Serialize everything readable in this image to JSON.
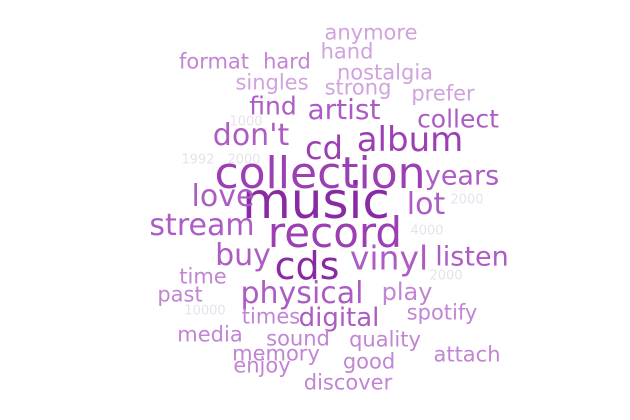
{
  "word_cloud": {
    "colors": {
      "darkest": "#8a2aa3",
      "dark": "#9b3fb3",
      "medium": "#ad5cc3",
      "light": "#c285d3",
      "lightest": "#d0a3de",
      "faint": "#e6e2ec"
    },
    "words": [
      {
        "text": "music",
        "weight": 100
      },
      {
        "text": "collection",
        "weight": 94
      },
      {
        "text": "record",
        "weight": 90
      },
      {
        "text": "cds",
        "weight": 82
      },
      {
        "text": "album",
        "weight": 76
      },
      {
        "text": "vinyl",
        "weight": 72
      },
      {
        "text": "cd",
        "weight": 72
      },
      {
        "text": "stream",
        "weight": 66
      },
      {
        "text": "lot",
        "weight": 64
      },
      {
        "text": "artist",
        "weight": 62
      },
      {
        "text": "physical",
        "weight": 62
      },
      {
        "text": "don't",
        "weight": 62
      },
      {
        "text": "love",
        "weight": 60
      },
      {
        "text": "buy",
        "weight": 60
      },
      {
        "text": "years",
        "weight": 56
      },
      {
        "text": "listen",
        "weight": 56
      },
      {
        "text": "digital",
        "weight": 54
      },
      {
        "text": "collect",
        "weight": 52
      },
      {
        "text": "find",
        "weight": 52
      },
      {
        "text": "play",
        "weight": 50
      },
      {
        "text": "time",
        "weight": 42
      },
      {
        "text": "past",
        "weight": 40
      },
      {
        "text": "times",
        "weight": 40
      },
      {
        "text": "spotify",
        "weight": 40
      },
      {
        "text": "sound",
        "weight": 40
      },
      {
        "text": "quality",
        "weight": 40
      },
      {
        "text": "media",
        "weight": 40
      },
      {
        "text": "memory",
        "weight": 40
      },
      {
        "text": "good",
        "weight": 40
      },
      {
        "text": "attach",
        "weight": 40
      },
      {
        "text": "enjoy",
        "weight": 40
      },
      {
        "text": "discover",
        "weight": 40
      },
      {
        "text": "anymore",
        "weight": 40
      },
      {
        "text": "hand",
        "weight": 40
      },
      {
        "text": "format",
        "weight": 40
      },
      {
        "text": "hard",
        "weight": 40
      },
      {
        "text": "nostalgia",
        "weight": 40
      },
      {
        "text": "singles",
        "weight": 40
      },
      {
        "text": "strong",
        "weight": 40
      },
      {
        "text": "prefer",
        "weight": 40
      }
    ],
    "faint_labels": [
      "1992",
      "2000",
      "2000",
      "4000",
      "2000",
      "10000",
      "1000"
    ]
  }
}
